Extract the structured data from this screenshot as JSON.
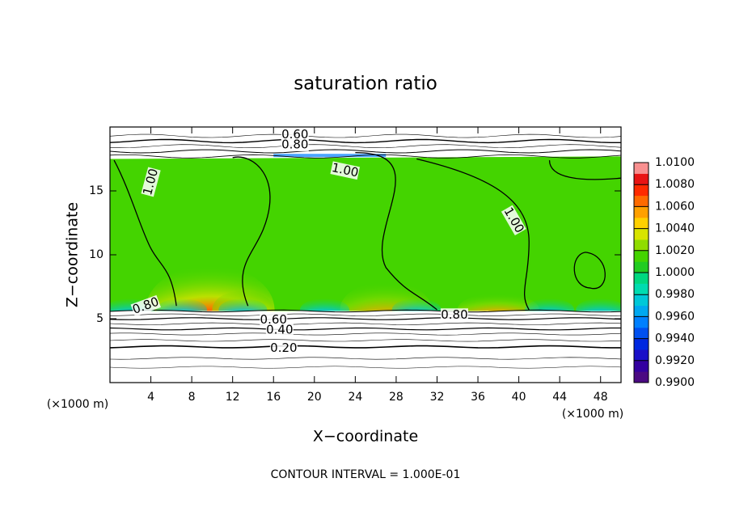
{
  "chart_data": {
    "type": "contour",
    "title": "saturation ratio",
    "xlabel": "X−coordinate",
    "ylabel": "Z−coordinate",
    "xlabel_unit": "(×1000 m)",
    "ylabel_unit": "(×1000 m)",
    "footer": "CONTOUR INTERVAL = 1.000E-01",
    "xlim": [
      0,
      50
    ],
    "ylim": [
      0,
      20
    ],
    "xticks": [
      4,
      8,
      12,
      16,
      20,
      24,
      28,
      32,
      36,
      40,
      44,
      48
    ],
    "yticks": [
      5,
      10,
      15
    ],
    "colorbar": {
      "lim": [
        0.99,
        1.01
      ],
      "ticks": [
        {
          "value": 0.99,
          "label": "0.9900"
        },
        {
          "value": 0.992,
          "label": "0.9920"
        },
        {
          "value": 0.994,
          "label": "0.9940"
        },
        {
          "value": 0.996,
          "label": "0.9960"
        },
        {
          "value": 0.998,
          "label": "0.9980"
        },
        {
          "value": 1.0,
          "label": "1.0000"
        },
        {
          "value": 1.002,
          "label": "1.0020"
        },
        {
          "value": 1.004,
          "label": "1.0040"
        },
        {
          "value": 1.006,
          "label": "1.0060"
        },
        {
          "value": 1.008,
          "label": "1.0080"
        },
        {
          "value": 1.01,
          "label": "1.0100"
        }
      ],
      "colors": [
        "#4b0a82",
        "#3300a0",
        "#1a10c8",
        "#0028e0",
        "#0050f0",
        "#0080ff",
        "#00a8f0",
        "#00c8d8",
        "#00dcb0",
        "#00d880",
        "#22cc22",
        "#44d400",
        "#90dc00",
        "#d8e400",
        "#ffd000",
        "#ffa000",
        "#ff6a00",
        "#ff2a00",
        "#e81414",
        "#f89090"
      ]
    },
    "contour_labels": [
      {
        "value": 0.6,
        "label": "0.60"
      },
      {
        "value": 0.8,
        "label": "0.80"
      },
      {
        "value": 1.0,
        "label": "1.00"
      },
      {
        "value": 1.0,
        "label": "1.00"
      },
      {
        "value": 1.0,
        "label": "1.00"
      },
      {
        "value": 0.8,
        "label": "0.80"
      },
      {
        "value": 0.6,
        "label": "0.60"
      },
      {
        "value": 0.4,
        "label": "0.40"
      },
      {
        "value": 0.2,
        "label": "0.20"
      },
      {
        "value": 0.8,
        "label": "0.80"
      }
    ]
  }
}
